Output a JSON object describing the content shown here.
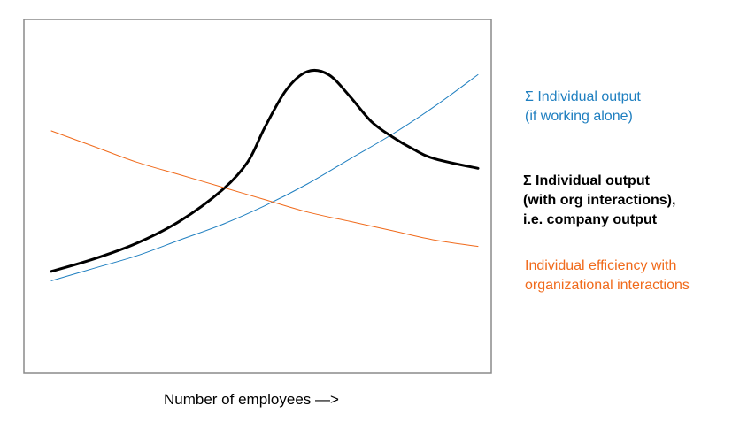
{
  "chart_data": {
    "type": "line",
    "xlabel": "Number of employees —>",
    "ylabel": "",
    "grid": false,
    "legend_placement": "right",
    "x_range": [
      0,
      1
    ],
    "y_range": [
      0,
      1
    ],
    "series": [
      {
        "key": "individual_output",
        "name_lines": [
          "Σ Individual output",
          "(if working alone)"
        ],
        "color": "#1f7fc0",
        "x": [
          0.0,
          0.1,
          0.2,
          0.3,
          0.4,
          0.5,
          0.6,
          0.7,
          0.8,
          0.9,
          1.0
        ],
        "y": [
          0.2,
          0.24,
          0.28,
          0.33,
          0.38,
          0.44,
          0.51,
          0.59,
          0.67,
          0.76,
          0.86
        ]
      },
      {
        "key": "company_output",
        "name_lines": [
          "Σ Individual output",
          "(with org interactions),",
          "i.e. company output"
        ],
        "color": "#000000",
        "x": [
          0.0,
          0.1,
          0.2,
          0.3,
          0.4,
          0.46,
          0.5,
          0.55,
          0.6,
          0.65,
          0.7,
          0.75,
          0.8,
          0.85,
          0.9,
          1.0
        ],
        "y": [
          0.23,
          0.27,
          0.32,
          0.39,
          0.49,
          0.58,
          0.69,
          0.81,
          0.87,
          0.86,
          0.79,
          0.71,
          0.66,
          0.62,
          0.59,
          0.56
        ]
      },
      {
        "key": "individual_efficiency",
        "name_lines": [
          "Individual efficiency with",
          "organizational interactions"
        ],
        "color": "#f06a1b",
        "x": [
          0.0,
          0.1,
          0.2,
          0.3,
          0.4,
          0.5,
          0.6,
          0.7,
          0.8,
          0.9,
          1.0
        ],
        "y": [
          0.68,
          0.63,
          0.58,
          0.54,
          0.5,
          0.46,
          0.42,
          0.39,
          0.36,
          0.33,
          0.31
        ]
      }
    ]
  }
}
